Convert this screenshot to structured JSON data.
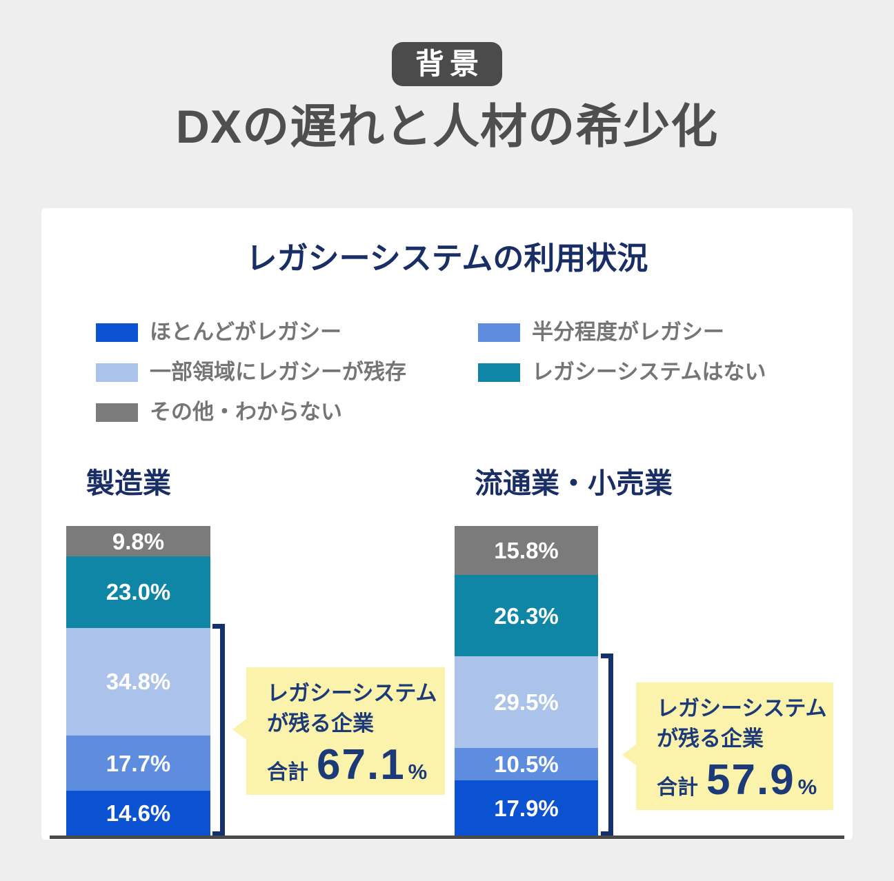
{
  "header": {
    "badge": "背景",
    "title": "DXの遅れと人材の希少化"
  },
  "card": {
    "title": "レガシーシステムの利用状況"
  },
  "legend": {
    "items": [
      {
        "name": "most-legacy",
        "label": "ほとんどがレガシー",
        "color": "#0a52d2"
      },
      {
        "name": "half-legacy",
        "label": "半分程度がレガシー",
        "color": "#5e8cdf"
      },
      {
        "name": "partial-legacy",
        "label": "一部領域にレガシーが残存",
        "color": "#abc3ea"
      },
      {
        "name": "no-legacy",
        "label": "レガシーシステムはない",
        "color": "#0f86a6"
      },
      {
        "name": "other-unknown",
        "label": "その他・わからない",
        "color": "#7b7b7b"
      }
    ]
  },
  "groups": [
    {
      "label": "製造業"
    },
    {
      "label": "流通業・小売業"
    }
  ],
  "callouts": [
    {
      "line1": "レガシーシステム",
      "line2": "が残る企業",
      "total_label": "合計",
      "value": "67.1",
      "unit": "%"
    },
    {
      "line1": "レガシーシステム",
      "line2": "が残る企業",
      "total_label": "合計",
      "value": "57.9",
      "unit": "%"
    }
  ],
  "chart_data": {
    "type": "bar",
    "subtype": "percent-stacked",
    "title": "レガシーシステムの利用状況",
    "categories": [
      "製造業",
      "流通業・小売業"
    ],
    "unit": "%",
    "ylim": [
      0,
      100
    ],
    "grid": false,
    "legend_position": "top",
    "stack_order": "bottom-to-top",
    "series": [
      {
        "name": "ほとんどがレガシー",
        "color": "#0a52d2",
        "values": [
          14.6,
          17.9
        ]
      },
      {
        "name": "半分程度がレガシー",
        "color": "#5e8cdf",
        "values": [
          17.7,
          10.5
        ]
      },
      {
        "name": "一部領域にレガシーが残存",
        "color": "#abc3ea",
        "values": [
          34.8,
          29.5
        ]
      },
      {
        "name": "レガシーシステムはない",
        "color": "#0f86a6",
        "values": [
          23.0,
          26.3
        ]
      },
      {
        "name": "その他・わからない",
        "color": "#7b7b7b",
        "values": [
          9.8,
          15.8
        ]
      }
    ],
    "annotations": [
      {
        "category": "製造業",
        "text": "レガシーシステムが残る企業",
        "total_label": "合計",
        "total": 67.1,
        "unit": "%"
      },
      {
        "category": "流通業・小売業",
        "text": "レガシーシステムが残る企業",
        "total_label": "合計",
        "total": 57.9,
        "unit": "%"
      }
    ]
  },
  "colors": {
    "page_bg": "#eeeeee",
    "card_bg": "#ffffff",
    "badge_gray": "#4b4b4b",
    "title_gray": "#4f4f4f",
    "heading_navy": "#1a2e66",
    "callout_navy": "#1d3a78",
    "bracket_navy": "#14316e",
    "callout_yellow": "#fbf3ab",
    "legend_text_gray": "#757575",
    "baseline_gray": "#4a4a4a"
  }
}
